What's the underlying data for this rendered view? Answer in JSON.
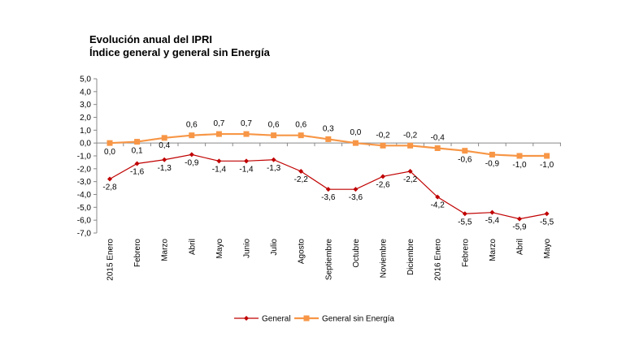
{
  "chart_data": {
    "type": "line",
    "title": "Evolución anual del IPRI",
    "subtitle": "Índice general y general sin Energía",
    "categories": [
      "2015 Enero",
      "Febrero",
      "Marzo",
      "Abril",
      "Mayo",
      "Junio",
      "Julio",
      "Agosto",
      "Septiembre",
      "Octubre",
      "Noviembre",
      "Diciembre",
      "2016 Enero",
      "Febrero",
      "Marzo",
      "Abril",
      "Mayo"
    ],
    "ylim": [
      -7.0,
      5.0
    ],
    "yticks": [
      5.0,
      4.0,
      3.0,
      2.0,
      1.0,
      0.0,
      -1.0,
      -2.0,
      -3.0,
      -4.0,
      -5.0,
      -6.0,
      -7.0
    ],
    "ytick_labels": [
      "5,0",
      "4,0",
      "3,0",
      "2,0",
      "1,0",
      "0,0",
      "-1,0",
      "-2,0",
      "-3,0",
      "-4,0",
      "-5,0",
      "-6,0",
      "-7,0"
    ],
    "grid": false,
    "legend_position": "bottom",
    "series": [
      {
        "name": "General",
        "color": "#C00000",
        "marker": "diamond",
        "values": [
          -2.8,
          -1.6,
          -1.3,
          -0.9,
          -1.4,
          -1.4,
          -1.3,
          -2.2,
          -3.6,
          -3.6,
          -2.6,
          -2.2,
          -4.2,
          -5.5,
          -5.4,
          -5.9,
          -5.5
        ],
        "labels": [
          "-2,8",
          "-1,6",
          "-1,3",
          "-0,9",
          "-1,4",
          "-1,4",
          "-1,3",
          "-2,2",
          "-3,6",
          "-3,6",
          "-2,6",
          "-2,2",
          "-4,2",
          "-5,5",
          "-5,4",
          "-5,9",
          "-5,5"
        ]
      },
      {
        "name": "General sin Energía",
        "color": "#F79646",
        "marker": "square",
        "values": [
          0.0,
          0.1,
          0.4,
          0.6,
          0.7,
          0.7,
          0.6,
          0.6,
          0.3,
          0.0,
          -0.2,
          -0.2,
          -0.4,
          -0.6,
          -0.9,
          -1.0,
          -1.0
        ],
        "labels": [
          "0,0",
          "0,1",
          "0,4",
          "0,6",
          "0,7",
          "0,7",
          "0,6",
          "0,6",
          "0,3",
          "0,0",
          "-0,2",
          "-0,2",
          "-0,4",
          "-0,6",
          "-0,9",
          "-1,0",
          "-1,0"
        ]
      }
    ]
  }
}
